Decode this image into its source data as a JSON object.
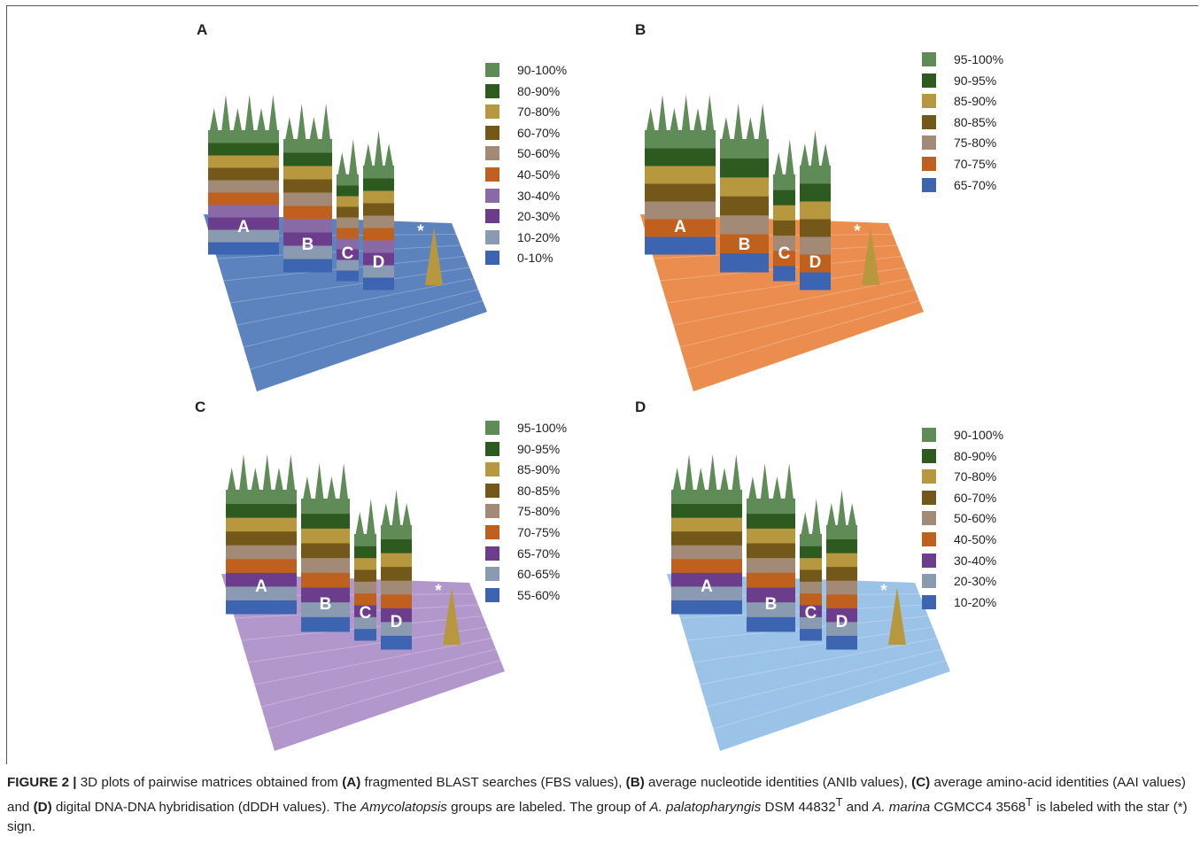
{
  "figure": {
    "panels": [
      {
        "letter": "A",
        "base_color": "#3f6db3",
        "legend": [
          {
            "label": "90-100%",
            "color": "#5f8b57"
          },
          {
            "label": "80-90%",
            "color": "#2d5a1e"
          },
          {
            "label": "70-80%",
            "color": "#b8983e"
          },
          {
            "label": "60-70%",
            "color": "#73581a"
          },
          {
            "label": "50-60%",
            "color": "#a38a76"
          },
          {
            "label": "40-50%",
            "color": "#c0601e"
          },
          {
            "label": "30-40%",
            "color": "#8a6aa6"
          },
          {
            "label": "20-30%",
            "color": "#6b3d8c"
          },
          {
            "label": "10-20%",
            "color": "#8a9ab0"
          },
          {
            "label": "0-10%",
            "color": "#3d64b0"
          }
        ],
        "groups": [
          "A",
          "B",
          "C",
          "D",
          "*"
        ]
      },
      {
        "letter": "B",
        "base_color": "#e77930",
        "legend": [
          {
            "label": "95-100%",
            "color": "#5f8b57"
          },
          {
            "label": "90-95%",
            "color": "#2d5a1e"
          },
          {
            "label": "85-90%",
            "color": "#b8983e"
          },
          {
            "label": "80-85%",
            "color": "#73581a"
          },
          {
            "label": "75-80%",
            "color": "#a38a76"
          },
          {
            "label": "70-75%",
            "color": "#c0601e"
          },
          {
            "label": "65-70%",
            "color": "#3d64b0"
          }
        ],
        "groups": [
          "A",
          "B",
          "C",
          "D",
          "*"
        ]
      },
      {
        "letter": "C",
        "base_color": "#a585c4",
        "legend": [
          {
            "label": "95-100%",
            "color": "#5f8b57"
          },
          {
            "label": "90-95%",
            "color": "#2d5a1e"
          },
          {
            "label": "85-90%",
            "color": "#b8983e"
          },
          {
            "label": "80-85%",
            "color": "#73581a"
          },
          {
            "label": "75-80%",
            "color": "#a38a76"
          },
          {
            "label": "70-75%",
            "color": "#c0601e"
          },
          {
            "label": "65-70%",
            "color": "#6b3d8c"
          },
          {
            "label": "60-65%",
            "color": "#8a9ab0"
          },
          {
            "label": "55-60%",
            "color": "#3d64b0"
          }
        ],
        "groups": [
          "A",
          "B",
          "C",
          "D",
          "*"
        ]
      },
      {
        "letter": "D",
        "base_color": "#8ab9e3",
        "legend": [
          {
            "label": "90-100%",
            "color": "#5f8b57"
          },
          {
            "label": "80-90%",
            "color": "#2d5a1e"
          },
          {
            "label": "70-80%",
            "color": "#b8983e"
          },
          {
            "label": "60-70%",
            "color": "#73581a"
          },
          {
            "label": "50-60%",
            "color": "#a38a76"
          },
          {
            "label": "40-50%",
            "color": "#c0601e"
          },
          {
            "label": "30-40%",
            "color": "#6b3d8c"
          },
          {
            "label": "20-30%",
            "color": "#8a9ab0"
          },
          {
            "label": "10-20%",
            "color": "#3d64b0"
          }
        ],
        "groups": [
          "A",
          "B",
          "C",
          "D",
          "*"
        ]
      }
    ],
    "caption": {
      "figure_label": "FIGURE 2 |",
      "text_1": " 3D plots of pairwise matrices obtained from ",
      "ref_a": "(A)",
      "text_2": " fragmented BLAST searches (FBS values), ",
      "ref_b": "(B)",
      "text_3": " average nucleotide identities (ANIb values), ",
      "ref_c": "(C)",
      "text_4": " average amino-acid identities (AAI values) and ",
      "ref_d": "(D)",
      "text_5": " digital DNA-DNA hybridisation (dDDH values). The ",
      "genus": "Amycolatopsis",
      "text_6": " groups are labeled. The group of ",
      "species_1": "A. palatopharyngis",
      "text_7": " DSM 44832",
      "sup_1": "T",
      "text_8": " and ",
      "species_2": "A. marina",
      "text_9": " CGMCC4 3568",
      "sup_2": "T",
      "text_10": " is labeled with the star (*) sign."
    }
  }
}
